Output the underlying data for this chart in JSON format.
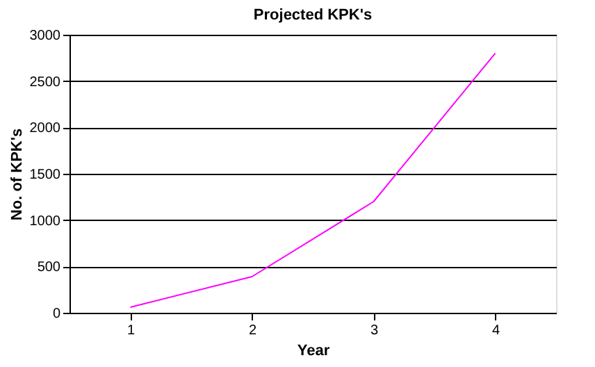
{
  "chart_data": {
    "type": "line",
    "title": "Projected KPK's",
    "xlabel": "Year",
    "ylabel": "No. of KPK's",
    "categories": [
      "1",
      "2",
      "3",
      "4"
    ],
    "series": [
      {
        "color": "#ff00ff",
        "values": [
          60,
          390,
          1200,
          2800
        ]
      }
    ],
    "ylim": [
      0,
      3000
    ],
    "yticks": [
      0,
      500,
      1000,
      1500,
      2000,
      2500,
      3000
    ],
    "grid": "y",
    "legend": false,
    "marker": "none"
  }
}
